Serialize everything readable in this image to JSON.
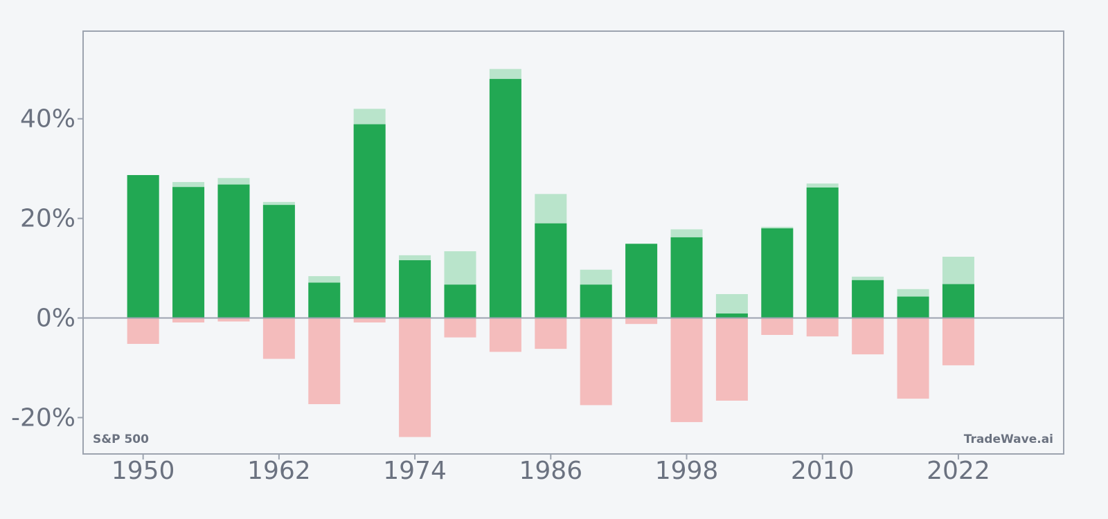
{
  "chart_data": {
    "type": "bar",
    "title": "",
    "xlabel": "",
    "ylabel": "",
    "periods": [
      {
        "x": 1950,
        "high": 28.7,
        "close": 28.7,
        "low": -5.2
      },
      {
        "x": 1954,
        "high": 27.3,
        "close": 26.3,
        "low": -0.9
      },
      {
        "x": 1958,
        "high": 28.1,
        "close": 26.8,
        "low": -0.7
      },
      {
        "x": 1962,
        "high": 23.3,
        "close": 22.7,
        "low": -8.2
      },
      {
        "x": 1966,
        "high": 8.4,
        "close": 7.1,
        "low": -17.3
      },
      {
        "x": 1970,
        "high": 42.0,
        "close": 38.9,
        "low": -0.9
      },
      {
        "x": 1974,
        "high": 12.6,
        "close": 11.6,
        "low": -23.9
      },
      {
        "x": 1978,
        "high": 13.4,
        "close": 6.7,
        "low": -3.9
      },
      {
        "x": 1982,
        "high": 50.0,
        "close": 48.0,
        "low": -6.8
      },
      {
        "x": 1986,
        "high": 24.9,
        "close": 19.0,
        "low": -6.2
      },
      {
        "x": 1990,
        "high": 9.7,
        "close": 6.7,
        "low": -17.5
      },
      {
        "x": 1994,
        "high": 14.9,
        "close": 14.9,
        "low": -1.2
      },
      {
        "x": 1998,
        "high": 17.8,
        "close": 16.2,
        "low": -20.9
      },
      {
        "x": 2002,
        "high": 4.8,
        "close": 0.9,
        "low": -16.6
      },
      {
        "x": 2006,
        "high": 18.3,
        "close": 18.0,
        "low": -3.4
      },
      {
        "x": 2010,
        "high": 27.0,
        "close": 26.2,
        "low": -3.7
      },
      {
        "x": 2014,
        "high": 8.3,
        "close": 7.6,
        "low": -7.3
      },
      {
        "x": 2018,
        "high": 5.8,
        "close": 4.3,
        "low": -16.2
      },
      {
        "x": 2022,
        "high": 12.3,
        "close": 6.8,
        "low": -9.5
      }
    ],
    "x_ticks": [
      1950,
      1962,
      1974,
      1986,
      1998,
      2010,
      2022
    ],
    "x_tick_labels": [
      "1950",
      "1962",
      "1974",
      "1986",
      "1998",
      "2010",
      "2022"
    ],
    "y_ticks": [
      -20,
      0,
      20,
      40
    ],
    "y_tick_labels": [
      "-20%",
      "0%",
      "20%",
      "40%"
    ],
    "xlim": [
      1944.7,
      2031.3
    ],
    "ylim": [
      -27.3,
      57.6
    ],
    "grid": false,
    "annotations": {
      "bottom_left": "S&P 500",
      "bottom_right": "TradeWave.ai"
    },
    "colors": {
      "close": "#22a853",
      "high": "#b9e4cb",
      "low": "#f4bcbc",
      "axis": "#9ca3af",
      "zero_line": "#9ca3af",
      "text": "#6b7280",
      "background": "#f4f6f8"
    }
  }
}
